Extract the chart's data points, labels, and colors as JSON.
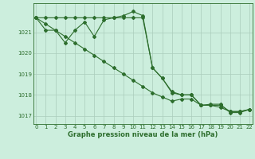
{
  "xlabel": "Graphe pression niveau de la mer (hPa)",
  "hours": [
    0,
    1,
    2,
    3,
    4,
    5,
    6,
    7,
    8,
    9,
    10,
    11,
    12,
    13,
    14,
    15,
    16,
    17,
    18,
    19,
    20,
    21,
    22
  ],
  "line_flat": [
    1021.7,
    1021.7,
    1021.7,
    1021.7,
    1021.7,
    1021.7,
    1021.7,
    1021.7,
    1021.7,
    1021.7,
    1021.7,
    1021.7,
    1019.3,
    1018.8,
    1018.1,
    1018.0,
    1018.0,
    1017.5,
    1017.5,
    1017.5,
    1017.2,
    1017.2,
    1017.3
  ],
  "line_diag": [
    1021.7,
    1021.4,
    1021.1,
    1020.8,
    1020.5,
    1020.2,
    1019.9,
    1019.6,
    1019.3,
    1019.0,
    1018.7,
    1018.4,
    1018.1,
    1017.9,
    1017.7,
    1017.8,
    1017.8,
    1017.5,
    1017.5,
    1017.4,
    1017.2,
    1017.2,
    1017.3
  ],
  "line_wiggly": [
    1021.7,
    1021.1,
    1021.1,
    1020.5,
    1021.1,
    1021.5,
    1020.8,
    1021.6,
    1021.7,
    1021.8,
    1022.0,
    1021.8,
    1019.3,
    1018.8,
    1018.15,
    1018.0,
    1018.0,
    1017.5,
    1017.55,
    1017.55,
    1017.15,
    1017.15,
    1017.3
  ],
  "ylim": [
    1016.6,
    1022.4
  ],
  "yticks": [
    1017,
    1018,
    1019,
    1020,
    1021
  ],
  "xlim": [
    -0.3,
    22.3
  ],
  "line_color": "#2d6e2d",
  "bg_color": "#cceedd",
  "grid_color": "#aaccbb",
  "marker": "D",
  "markersize": 2.0,
  "linewidth": 0.8,
  "tick_fontsize": 5.0,
  "xlabel_fontsize": 6.0
}
